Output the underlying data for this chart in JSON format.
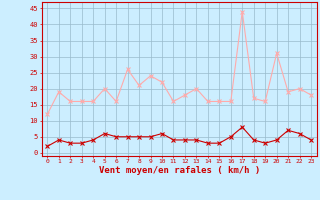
{
  "hours": [
    0,
    1,
    2,
    3,
    4,
    5,
    6,
    7,
    8,
    9,
    10,
    11,
    12,
    13,
    14,
    15,
    16,
    17,
    18,
    19,
    20,
    21,
    22,
    23
  ],
  "wind_avg": [
    2,
    4,
    3,
    3,
    4,
    6,
    5,
    5,
    5,
    5,
    6,
    4,
    4,
    4,
    3,
    3,
    5,
    8,
    4,
    3,
    4,
    7,
    6,
    4
  ],
  "wind_gust": [
    12,
    19,
    16,
    16,
    16,
    20,
    16,
    26,
    21,
    24,
    22,
    16,
    18,
    20,
    16,
    16,
    16,
    44,
    17,
    16,
    31,
    19,
    20,
    18
  ],
  "avg_color": "#cc0000",
  "gust_color": "#ffaaaa",
  "bg_color": "#cceeff",
  "grid_color": "#99bbcc",
  "xlabel": "Vent moyen/en rafales ( km/h )",
  "xlabel_color": "#cc0000",
  "yticks": [
    0,
    5,
    10,
    15,
    20,
    25,
    30,
    35,
    40,
    45
  ],
  "ylim": [
    -1,
    47
  ],
  "xlim": [
    -0.5,
    23.5
  ],
  "tick_color": "#cc0000"
}
